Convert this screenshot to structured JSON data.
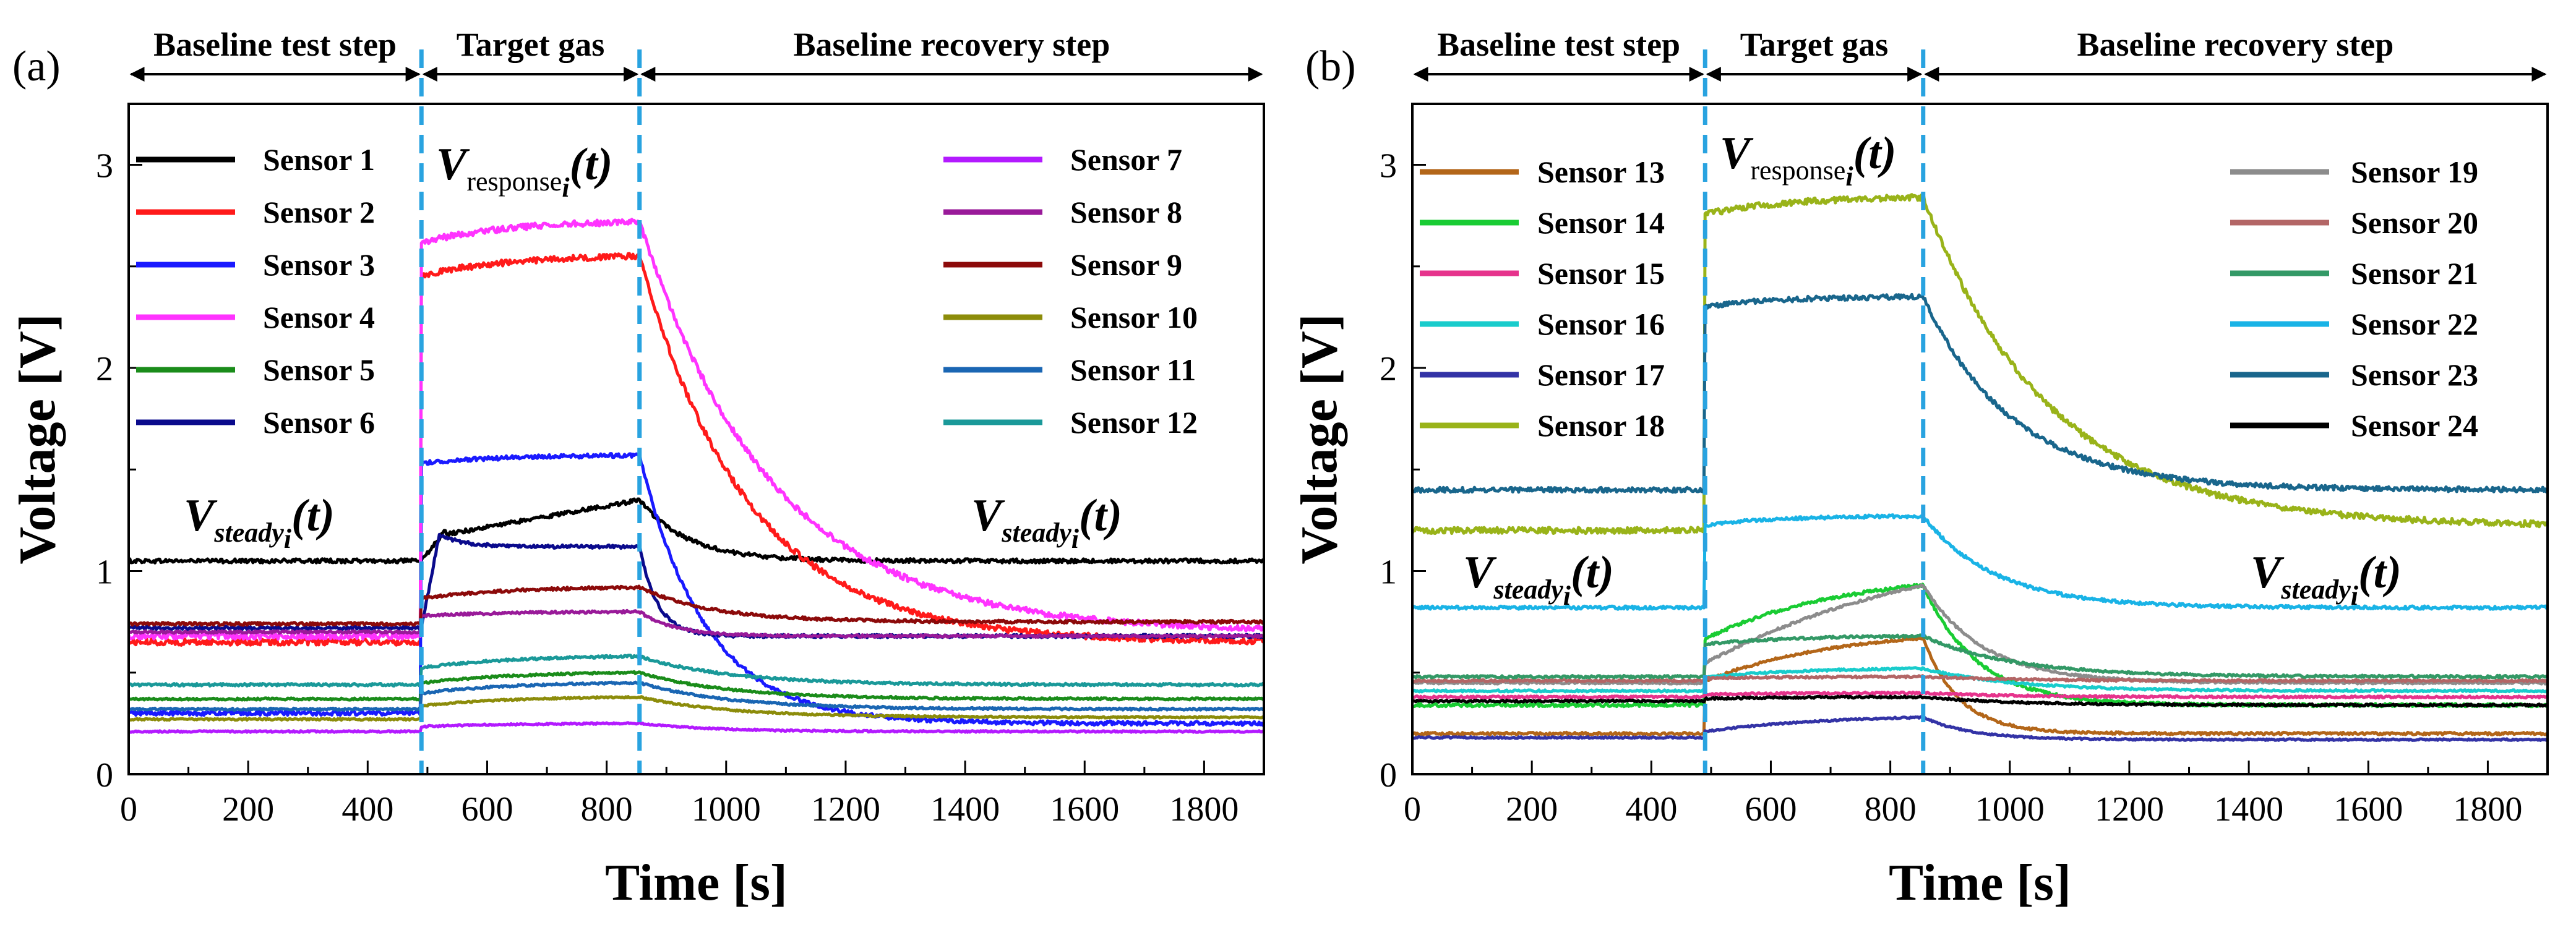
{
  "chart_data": [
    {
      "type": "line",
      "panel_label": "(a)",
      "xlabel": "Time [s]",
      "ylabel": "Voltage [V]",
      "xlim": [
        0,
        1900
      ],
      "ylim": [
        0,
        3.3
      ],
      "xticks": [
        0,
        200,
        400,
        600,
        800,
        1000,
        1200,
        1400,
        1600,
        1800
      ],
      "yticks": [
        0,
        1,
        2,
        3
      ],
      "grid": false,
      "event_lines": [
        490,
        855
      ],
      "phases": [
        {
          "label": "Baseline test step",
          "from": 0,
          "to": 490
        },
        {
          "label": "Target gas",
          "from": 490,
          "to": 855
        },
        {
          "label": "Baseline recovery step",
          "from": 855,
          "to": 1900
        }
      ],
      "annotations": {
        "steady_left": {
          "main": "V",
          "sub": "steady",
          "subsub": "i",
          "tail": "(t)"
        },
        "response": {
          "main": "V",
          "sub": "response",
          "subsub": "i",
          "tail": "(t)"
        },
        "steady_right": {
          "main": "V",
          "sub": "steady",
          "subsub": "i",
          "tail": "(t)"
        }
      },
      "legend_columns": [
        [
          "Sensor 1",
          "Sensor 2",
          "Sensor 3",
          "Sensor 4",
          "Sensor 5",
          "Sensor 6"
        ],
        [
          "Sensor 7",
          "Sensor 8",
          "Sensor 9",
          "Sensor 10",
          "Sensor 11",
          "Sensor 12"
        ]
      ],
      "series": [
        {
          "name": "Sensor 1",
          "color": "#000000",
          "baseline": 1.05,
          "end_gas": 1.35,
          "rise_tau": 200,
          "rise_frac": 0.55,
          "final": 1.05,
          "tau_rec": 80,
          "noise": 0.01,
          "peak": 1.2,
          "peak_t": 530
        },
        {
          "name": "Sensor 2",
          "color": "#ff1a1a",
          "baseline": 0.65,
          "end_gas": 2.55,
          "rise_tau": 150,
          "rise_frac": 0.95,
          "final": 0.65,
          "tau_rec": 180,
          "noise": 0.015
        },
        {
          "name": "Sensor 3",
          "color": "#1a1aff",
          "baseline": 0.3,
          "end_gas": 1.57,
          "rise_tau": 150,
          "rise_frac": 0.97,
          "final": 0.25,
          "tau_rec": 110,
          "noise": 0.01
        },
        {
          "name": "Sensor 4",
          "color": "#ff33ff",
          "baseline": 0.68,
          "end_gas": 2.72,
          "rise_tau": 150,
          "rise_frac": 0.95,
          "final": 0.7,
          "tau_rec": 220,
          "noise": 0.015
        },
        {
          "name": "Sensor 5",
          "color": "#1a8c1a",
          "baseline": 0.37,
          "end_gas": 0.5,
          "rise_tau": 150,
          "rise_frac": 0.6,
          "final": 0.37,
          "tau_rec": 150,
          "noise": 0.005
        },
        {
          "name": "Sensor 6",
          "color": "#0a0a8c",
          "baseline": 0.72,
          "end_gas": 1.12,
          "rise_tau": 100,
          "rise_frac": 1.0,
          "final": 0.68,
          "tau_rec": 30,
          "noise": 0.008,
          "peak": 1.18,
          "peak_t": 520
        },
        {
          "name": "Sensor 7",
          "color": "#b31aff",
          "baseline": 0.21,
          "end_gas": 0.25,
          "rise_tau": 150,
          "rise_frac": 0.6,
          "final": 0.21,
          "tau_rec": 120,
          "noise": 0.004
        },
        {
          "name": "Sensor 8",
          "color": "#991a99",
          "baseline": 0.7,
          "end_gas": 0.8,
          "rise_tau": 150,
          "rise_frac": 0.8,
          "final": 0.68,
          "tau_rec": 60,
          "noise": 0.006
        },
        {
          "name": "Sensor 9",
          "color": "#8c0a0a",
          "baseline": 0.74,
          "end_gas": 0.92,
          "rise_tau": 150,
          "rise_frac": 0.7,
          "final": 0.75,
          "tau_rec": 120,
          "noise": 0.007
        },
        {
          "name": "Sensor 10",
          "color": "#8c8c0a",
          "baseline": 0.27,
          "end_gas": 0.38,
          "rise_tau": 150,
          "rise_frac": 0.6,
          "final": 0.28,
          "tau_rec": 150,
          "noise": 0.004
        },
        {
          "name": "Sensor 11",
          "color": "#1a66b3",
          "baseline": 0.32,
          "end_gas": 0.45,
          "rise_tau": 150,
          "rise_frac": 0.6,
          "final": 0.32,
          "tau_rec": 150,
          "noise": 0.005
        },
        {
          "name": "Sensor 12",
          "color": "#1a9999",
          "baseline": 0.44,
          "end_gas": 0.58,
          "rise_tau": 150,
          "rise_frac": 0.6,
          "final": 0.44,
          "tau_rec": 150,
          "noise": 0.006
        }
      ]
    },
    {
      "type": "line",
      "panel_label": "(b)",
      "xlabel": "Time [s]",
      "ylabel": "Voltage [V]",
      "xlim": [
        0,
        1900
      ],
      "ylim": [
        0,
        3.3
      ],
      "xticks": [
        0,
        200,
        400,
        600,
        800,
        1000,
        1200,
        1400,
        1600,
        1800
      ],
      "yticks": [
        0,
        1,
        2,
        3
      ],
      "grid": false,
      "event_lines": [
        490,
        855
      ],
      "phases": [
        {
          "label": "Baseline test step",
          "from": 0,
          "to": 490
        },
        {
          "label": "Target gas",
          "from": 490,
          "to": 855
        },
        {
          "label": "Baseline recovery step",
          "from": 855,
          "to": 1900
        }
      ],
      "annotations": {
        "steady_left": {
          "main": "V",
          "sub": "steady",
          "subsub": "i",
          "tail": "(t)"
        },
        "response": {
          "main": "V",
          "sub": "response",
          "subsub": "i",
          "tail": "(t)"
        },
        "steady_right": {
          "main": "V",
          "sub": "steady",
          "subsub": "i",
          "tail": "(t)"
        }
      },
      "legend_columns": [
        [
          "Sensor 13",
          "Sensor 14",
          "Sensor 15",
          "Sensor 16",
          "Sensor 17",
          "Sensor 18"
        ],
        [
          "Sensor 19",
          "Sensor 20",
          "Sensor 21",
          "Sensor 22",
          "Sensor 23",
          "Sensor 24"
        ]
      ],
      "series": [
        {
          "name": "Sensor 13",
          "color": "#b36619",
          "baseline": 0.2,
          "end_gas": 0.67,
          "rise_tau": 220,
          "rise_frac": 0.55,
          "final": 0.2,
          "tau_rec": 60,
          "noise": 0.006
        },
        {
          "name": "Sensor 14",
          "color": "#19cc33",
          "baseline": 0.34,
          "end_gas": 0.93,
          "rise_tau": 220,
          "rise_frac": 0.55,
          "final": 0.34,
          "tau_rec": 90,
          "noise": 0.008
        },
        {
          "name": "Sensor 15",
          "color": "#e6338c",
          "baseline": 0.38,
          "end_gas": 0.4,
          "rise_tau": 150,
          "rise_frac": 0.6,
          "final": 0.38,
          "tau_rec": 150,
          "noise": 0.005
        },
        {
          "name": "Sensor 16",
          "color": "#19cccc",
          "baseline": 0.41,
          "end_gas": 0.52,
          "rise_tau": 150,
          "rise_frac": 0.6,
          "final": 0.41,
          "tau_rec": 150,
          "noise": 0.005
        },
        {
          "name": "Sensor 17",
          "color": "#3333a6",
          "baseline": 0.18,
          "end_gas": 0.28,
          "rise_tau": 200,
          "rise_frac": 0.3,
          "final": 0.17,
          "tau_rec": 80,
          "noise": 0.004
        },
        {
          "name": "Sensor 18",
          "color": "#99b319",
          "baseline": 1.2,
          "end_gas": 2.84,
          "rise_tau": 150,
          "rise_frac": 0.95,
          "final": 1.22,
          "tau_rec": 210,
          "noise": 0.015
        },
        {
          "name": "Sensor 19",
          "color": "#8c8c8c",
          "baseline": 0.45,
          "end_gas": 0.93,
          "rise_tau": 400,
          "rise_frac": 0.2,
          "final": 0.45,
          "tau_rec": 100,
          "noise": 0.006
        },
        {
          "name": "Sensor 20",
          "color": "#b36666",
          "baseline": 0.46,
          "end_gas": 0.48,
          "rise_tau": 150,
          "rise_frac": 0.6,
          "final": 0.46,
          "tau_rec": 150,
          "noise": 0.005
        },
        {
          "name": "Sensor 21",
          "color": "#339966",
          "baseline": 0.48,
          "end_gas": 0.68,
          "rise_tau": 150,
          "rise_frac": 0.8,
          "final": 0.48,
          "tau_rec": 150,
          "noise": 0.006
        },
        {
          "name": "Sensor 22",
          "color": "#19b3e6",
          "baseline": 0.82,
          "end_gas": 1.27,
          "rise_tau": 120,
          "rise_frac": 0.9,
          "final": 0.82,
          "tau_rec": 120,
          "noise": 0.008
        },
        {
          "name": "Sensor 23",
          "color": "#19668c",
          "baseline": 1.4,
          "end_gas": 2.35,
          "rise_tau": 120,
          "rise_frac": 0.95,
          "final": 1.4,
          "tau_rec": 150,
          "noise": 0.012
        },
        {
          "name": "Sensor 24",
          "color": "#000000",
          "baseline": 0.36,
          "end_gas": 0.38,
          "rise_tau": 150,
          "rise_frac": 0.6,
          "final": 0.34,
          "tau_rec": 150,
          "noise": 0.005
        }
      ]
    }
  ]
}
